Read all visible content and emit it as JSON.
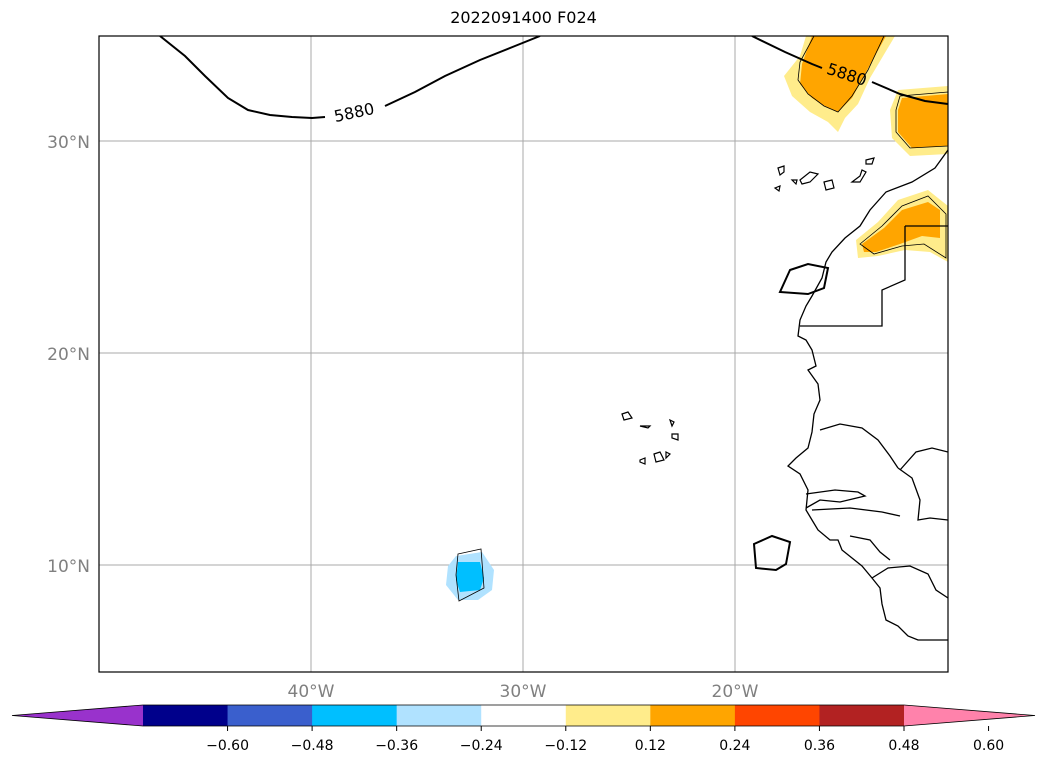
{
  "title": "2022091400 F024",
  "map": {
    "lat_labels": [
      "30°N",
      "20°N",
      "10°N"
    ],
    "lon_labels": [
      "40°W",
      "30°W",
      "20°W"
    ],
    "contour_label": "5880",
    "grid": true
  },
  "colorbar": {
    "colors": [
      "#9932cc",
      "#00008b",
      "#3a5fcd",
      "#00bfff",
      "#b0e2ff",
      "#ffffff",
      "#ffec8b",
      "#ffa500",
      "#ff4500",
      "#b22222",
      "#ff82ab"
    ],
    "ticks": [
      "−0.60",
      "−0.48",
      "−0.36",
      "−0.24",
      "−0.12",
      "0.12",
      "0.24",
      "0.36",
      "0.48",
      "0.60"
    ],
    "extend": "both"
  }
}
